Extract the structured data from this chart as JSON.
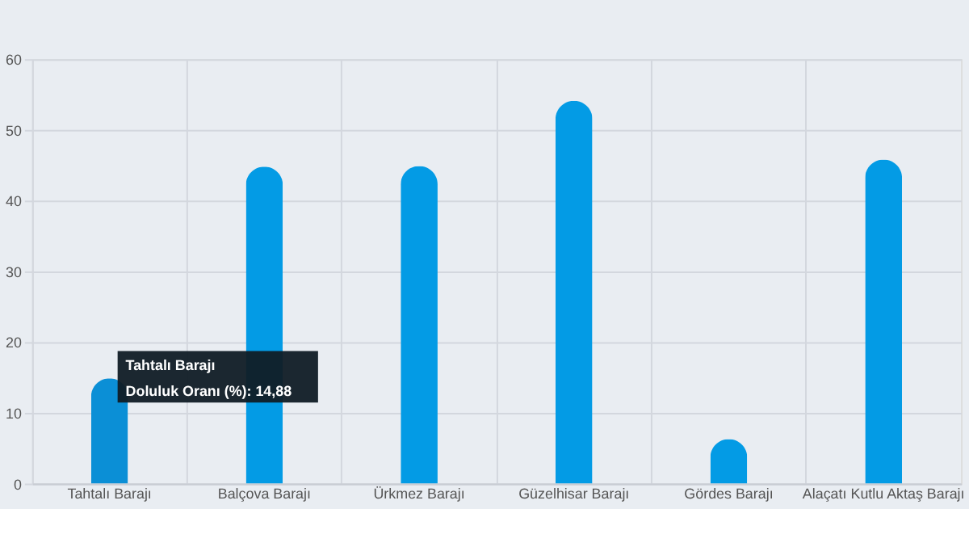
{
  "chart_data": {
    "type": "bar",
    "categories": [
      "Tahtalı Barajı",
      "Balçova Barajı",
      "Ürkmez Barajı",
      "Güzelhisar Barajı",
      "Gördes Barajı",
      "Alaçatı Kutlu Aktaş Barajı"
    ],
    "values": [
      14.88,
      44.8,
      44.9,
      54.1,
      6.3,
      45.8
    ],
    "colors": [
      "#0b8fd6",
      "#039be5",
      "#039be5",
      "#039be5",
      "#039be5",
      "#039be5"
    ],
    "ylim": [
      0,
      60
    ],
    "yticks": [
      0,
      10,
      20,
      30,
      40,
      50,
      60
    ],
    "grid": true,
    "annotations": [
      {
        "text": "Tahtalı Barajı",
        "x": "Tahtalı Barajı",
        "y": 14.88
      },
      {
        "text": "Doluluk Oranı (%): 14,88",
        "x": "Tahtalı Barajı",
        "y": 14.88
      }
    ]
  }
}
